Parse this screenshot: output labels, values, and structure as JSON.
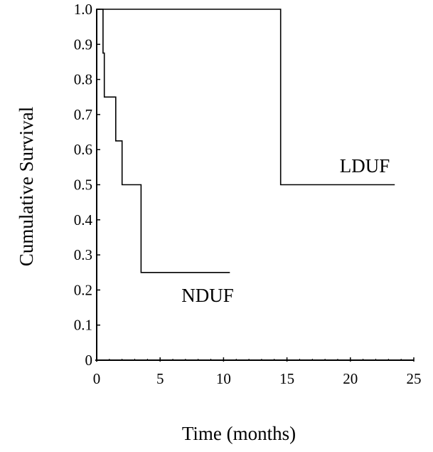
{
  "chart_data": {
    "type": "line",
    "step": true,
    "title": "",
    "xlabel": "Time (months)",
    "ylabel": "Cumulative Survival",
    "xlim": [
      0,
      25
    ],
    "ylim": [
      0,
      1.0
    ],
    "x_ticks": [
      "0",
      "5",
      "10",
      "15",
      "20",
      "25"
    ],
    "y_ticks": [
      "0",
      "0.1",
      "0.2",
      "0.3",
      "0.4",
      "0.5",
      "0.6",
      "0.7",
      "0.8",
      "0.9",
      "1.0"
    ],
    "grid": false,
    "series": [
      {
        "name": "NDUF",
        "x": [
          0,
          0.5,
          0.5,
          0.6,
          0.6,
          1.5,
          1.5,
          2.0,
          2.0,
          3.5,
          3.5,
          10.5
        ],
        "y": [
          1.0,
          1.0,
          0.875,
          0.875,
          0.75,
          0.75,
          0.625,
          0.625,
          0.5,
          0.5,
          0.25,
          0.25
        ]
      },
      {
        "name": "LDUF",
        "x": [
          0,
          14.5,
          14.5,
          23.5
        ],
        "y": [
          1.0,
          1.0,
          0.5,
          0.5
        ]
      }
    ]
  }
}
